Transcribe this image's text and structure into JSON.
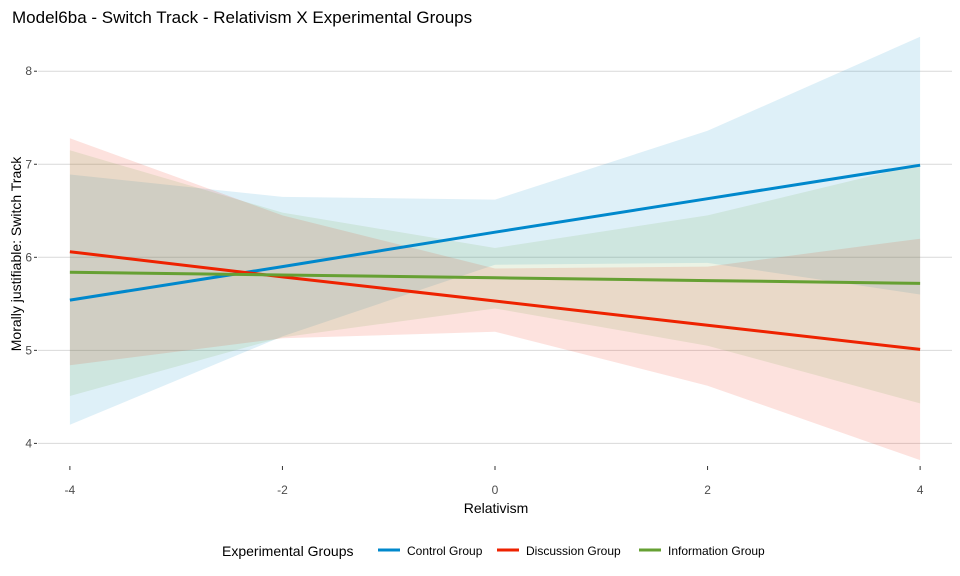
{
  "chart_data": {
    "type": "line",
    "title": "Model6ba - Switch Track - Relativism X Experimental Groups",
    "xlabel": "Relativism",
    "ylabel": "Morally justifiable: Switch Track",
    "xlim": [
      -4.3,
      4.3
    ],
    "ylim": [
      3.8,
      8.4
    ],
    "xticks": [
      -4,
      -2,
      0,
      2,
      4
    ],
    "yticks": [
      4,
      5,
      6,
      7,
      8
    ],
    "grid": "horizontal major",
    "legend": {
      "title": "Experimental Groups",
      "position": "bottom"
    },
    "x": [
      -4,
      -2,
      0,
      2,
      4
    ],
    "series": [
      {
        "name": "Control Group",
        "color": "#0088cc",
        "values": [
          5.54,
          5.9,
          6.27,
          6.63,
          6.99
        ],
        "ci_lower": [
          4.2,
          5.15,
          5.92,
          5.94,
          5.6
        ],
        "ci_upper": [
          6.89,
          6.65,
          6.62,
          7.36,
          8.37
        ]
      },
      {
        "name": "Discussion Group",
        "color": "#ee2200",
        "values": [
          6.06,
          5.79,
          5.53,
          5.27,
          5.01
        ],
        "ci_lower": [
          4.84,
          5.13,
          5.2,
          4.62,
          3.82
        ],
        "ci_upper": [
          7.28,
          6.45,
          5.88,
          5.9,
          6.2
        ]
      },
      {
        "name": "Information Group",
        "color": "#66a033",
        "values": [
          5.84,
          5.81,
          5.78,
          5.75,
          5.72
        ],
        "ci_lower": [
          4.51,
          5.14,
          5.45,
          5.05,
          4.43
        ],
        "ci_upper": [
          7.15,
          6.48,
          6.1,
          6.45,
          7.0
        ]
      }
    ]
  }
}
